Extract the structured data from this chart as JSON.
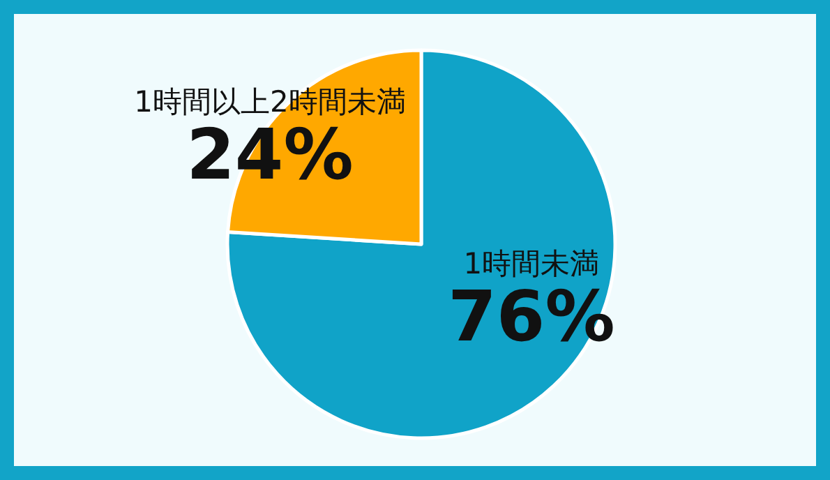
{
  "chart_data": {
    "type": "pie",
    "categories": [
      "1時間未満",
      "1時間以上2時間未満"
    ],
    "values": [
      76,
      24
    ],
    "colors": [
      "#10a3c8",
      "#ffa800"
    ],
    "value_labels": [
      "76%",
      "24%"
    ]
  }
}
